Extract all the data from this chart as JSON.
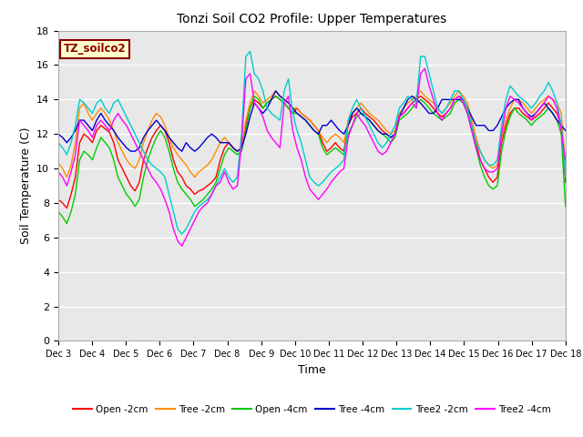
{
  "title": "Tonzi Soil CO2 Profile: Upper Temperatures",
  "xlabel": "Time",
  "ylabel": "Soil Temperature (C)",
  "ylim": [
    0,
    18
  ],
  "yticks": [
    0,
    2,
    4,
    6,
    8,
    10,
    12,
    14,
    16,
    18
  ],
  "annotation": "TZ_soilco2",
  "annotation_color": "#8B0000",
  "annotation_bg": "#FFFFCC",
  "annotation_border": "#8B0000",
  "fig_bg": "#FFFFFF",
  "plot_bg": "#E8E8E8",
  "grid_color": "#FFFFFF",
  "series_colors": {
    "Open -2cm": "#FF0000",
    "Tree -2cm": "#FF8C00",
    "Open -4cm": "#00CC00",
    "Tree -4cm": "#0000CC",
    "Tree2 -2cm": "#00CCCC",
    "Tree2 -4cm": "#FF00FF"
  },
  "n_points": 120,
  "x_tick_labels": [
    "Dec 3",
    "Dec 4",
    "Dec 5",
    "Dec 6",
    "Dec 7",
    "Dec 8",
    "Dec 9",
    "Dec 10",
    "Dec 11",
    "Dec 12",
    "Dec 13",
    "Dec 14",
    "Dec 15",
    "Dec 16",
    "Dec 17",
    "Dec 18"
  ],
  "open_2cm": [
    8.2,
    8.0,
    7.7,
    8.5,
    9.5,
    11.5,
    12.0,
    11.8,
    11.5,
    12.2,
    12.5,
    12.3,
    12.1,
    11.5,
    10.5,
    10.0,
    9.5,
    9.0,
    8.7,
    9.2,
    10.5,
    11.2,
    11.8,
    12.2,
    12.5,
    12.2,
    11.5,
    10.5,
    9.8,
    9.5,
    9.0,
    8.8,
    8.5,
    8.7,
    8.8,
    9.0,
    9.2,
    9.5,
    10.5,
    11.2,
    11.5,
    11.2,
    11.0,
    11.2,
    12.5,
    13.5,
    14.0,
    13.8,
    13.5,
    13.8,
    14.0,
    14.2,
    14.0,
    13.8,
    13.5,
    13.2,
    13.5,
    13.2,
    13.0,
    12.8,
    12.5,
    12.2,
    11.5,
    11.0,
    11.2,
    11.5,
    11.2,
    11.0,
    12.5,
    13.0,
    13.2,
    13.5,
    13.2,
    13.0,
    12.8,
    12.5,
    12.2,
    12.0,
    11.8,
    12.0,
    13.0,
    13.2,
    13.5,
    13.8,
    14.0,
    14.2,
    14.0,
    13.8,
    13.5,
    13.2,
    13.0,
    13.2,
    13.5,
    14.0,
    14.2,
    14.0,
    13.5,
    12.5,
    11.5,
    10.5,
    10.0,
    9.5,
    9.2,
    9.5,
    11.5,
    12.5,
    13.2,
    13.5,
    13.5,
    13.2,
    13.0,
    12.8,
    13.0,
    13.2,
    13.5,
    13.8,
    13.5,
    13.2,
    12.5,
    9.2
  ],
  "tree_2cm": [
    10.3,
    10.0,
    9.5,
    10.2,
    11.5,
    13.5,
    13.8,
    13.2,
    12.8,
    13.2,
    13.5,
    13.2,
    12.8,
    12.2,
    11.5,
    11.0,
    10.5,
    10.2,
    10.0,
    10.5,
    11.5,
    12.2,
    12.8,
    13.2,
    13.0,
    12.5,
    11.8,
    11.2,
    10.8,
    10.5,
    10.2,
    9.8,
    9.5,
    9.8,
    10.0,
    10.2,
    10.5,
    11.0,
    11.5,
    11.8,
    11.5,
    11.2,
    11.0,
    11.2,
    12.8,
    13.8,
    14.5,
    14.2,
    13.8,
    14.0,
    14.2,
    14.5,
    14.2,
    14.0,
    13.8,
    13.5,
    13.5,
    13.2,
    13.0,
    12.8,
    12.5,
    12.2,
    11.8,
    11.5,
    11.8,
    12.0,
    11.8,
    11.5,
    12.8,
    13.2,
    13.5,
    13.8,
    13.5,
    13.2,
    13.0,
    12.8,
    12.5,
    12.2,
    12.0,
    12.2,
    13.2,
    13.5,
    13.8,
    14.0,
    14.2,
    14.5,
    14.2,
    14.0,
    13.8,
    13.5,
    13.2,
    13.5,
    13.8,
    14.2,
    14.5,
    14.2,
    13.8,
    12.8,
    11.8,
    11.0,
    10.5,
    10.2,
    10.0,
    10.2,
    11.8,
    12.8,
    13.5,
    14.0,
    14.0,
    13.8,
    13.5,
    13.2,
    13.5,
    13.8,
    14.0,
    14.2,
    14.0,
    13.8,
    13.2,
    10.0
  ],
  "open_4cm": [
    7.5,
    7.2,
    6.8,
    7.5,
    8.5,
    10.5,
    11.0,
    10.8,
    10.5,
    11.2,
    11.8,
    11.5,
    11.2,
    10.5,
    9.5,
    9.0,
    8.5,
    8.2,
    7.8,
    8.2,
    9.5,
    10.5,
    11.2,
    11.8,
    12.2,
    11.8,
    11.0,
    10.0,
    9.2,
    8.8,
    8.5,
    8.2,
    7.8,
    8.0,
    8.2,
    8.5,
    8.8,
    9.2,
    10.0,
    10.8,
    11.2,
    11.0,
    10.8,
    11.0,
    12.2,
    13.5,
    14.2,
    14.0,
    13.5,
    13.8,
    14.0,
    14.2,
    14.0,
    13.8,
    13.5,
    13.2,
    13.2,
    13.0,
    12.8,
    12.5,
    12.2,
    12.0,
    11.2,
    10.8,
    11.0,
    11.2,
    11.0,
    10.8,
    12.0,
    12.5,
    13.0,
    13.2,
    13.0,
    12.8,
    12.5,
    12.2,
    12.0,
    11.8,
    11.5,
    11.8,
    12.8,
    13.0,
    13.2,
    13.5,
    13.8,
    14.0,
    13.8,
    13.5,
    13.2,
    13.0,
    12.8,
    13.0,
    13.2,
    13.8,
    14.0,
    13.8,
    13.2,
    12.2,
    11.2,
    10.2,
    9.5,
    9.0,
    8.8,
    9.0,
    11.0,
    12.2,
    13.0,
    13.5,
    13.2,
    13.0,
    12.8,
    12.5,
    12.8,
    13.0,
    13.2,
    13.5,
    13.2,
    12.8,
    12.0,
    7.8
  ],
  "tree_4cm": [
    12.0,
    11.8,
    11.5,
    11.8,
    12.2,
    12.8,
    12.8,
    12.5,
    12.2,
    12.8,
    13.2,
    12.8,
    12.5,
    12.2,
    11.8,
    11.5,
    11.2,
    11.0,
    11.0,
    11.2,
    11.8,
    12.2,
    12.5,
    12.8,
    12.5,
    12.2,
    11.8,
    11.5,
    11.2,
    11.0,
    11.5,
    11.2,
    11.0,
    11.2,
    11.5,
    11.8,
    12.0,
    11.8,
    11.5,
    11.5,
    11.5,
    11.2,
    11.0,
    11.2,
    12.0,
    13.0,
    13.8,
    13.5,
    13.2,
    13.5,
    14.0,
    14.5,
    14.2,
    14.0,
    13.8,
    13.5,
    13.2,
    13.0,
    12.8,
    12.5,
    12.2,
    12.0,
    12.5,
    12.5,
    12.8,
    12.5,
    12.2,
    12.0,
    12.5,
    13.2,
    13.5,
    13.2,
    13.0,
    12.8,
    12.5,
    12.2,
    12.0,
    12.0,
    11.8,
    12.0,
    13.0,
    13.5,
    14.0,
    14.2,
    14.0,
    13.8,
    13.5,
    13.2,
    13.2,
    13.5,
    14.0,
    14.0,
    14.0,
    14.0,
    14.0,
    14.0,
    13.5,
    13.0,
    12.5,
    12.5,
    12.5,
    12.2,
    12.2,
    12.5,
    13.0,
    13.5,
    13.8,
    14.0,
    14.0,
    13.5,
    13.2,
    13.0,
    13.2,
    13.5,
    13.8,
    13.5,
    13.2,
    12.8,
    12.5,
    12.2
  ],
  "tree2_2cm": [
    11.5,
    11.2,
    10.8,
    11.5,
    12.5,
    14.0,
    13.8,
    13.5,
    13.2,
    13.8,
    14.0,
    13.5,
    13.2,
    13.8,
    14.0,
    13.5,
    13.0,
    12.5,
    12.0,
    11.5,
    11.0,
    10.5,
    10.2,
    10.0,
    9.8,
    9.5,
    8.5,
    7.5,
    6.5,
    6.2,
    6.5,
    7.0,
    7.5,
    7.8,
    8.0,
    8.2,
    8.5,
    9.0,
    9.5,
    10.0,
    9.5,
    9.2,
    9.5,
    12.0,
    16.5,
    16.8,
    15.5,
    15.2,
    14.5,
    13.5,
    13.2,
    13.0,
    12.8,
    14.5,
    15.2,
    13.2,
    12.2,
    11.5,
    10.5,
    9.5,
    9.2,
    9.0,
    9.2,
    9.5,
    9.8,
    10.0,
    10.2,
    10.5,
    12.8,
    13.5,
    14.0,
    13.5,
    13.0,
    12.5,
    12.0,
    11.5,
    11.2,
    11.5,
    12.0,
    12.5,
    13.5,
    13.8,
    14.2,
    14.0,
    13.8,
    16.5,
    16.5,
    15.5,
    14.5,
    13.5,
    13.2,
    13.5,
    14.0,
    14.5,
    14.5,
    14.0,
    13.5,
    12.5,
    11.5,
    11.0,
    10.5,
    10.2,
    10.2,
    10.5,
    12.5,
    14.0,
    14.8,
    14.5,
    14.2,
    14.0,
    13.8,
    13.5,
    13.8,
    14.2,
    14.5,
    15.0,
    14.5,
    13.8,
    12.5,
    9.5
  ],
  "tree2_4cm": [
    9.8,
    9.5,
    9.0,
    9.8,
    10.8,
    12.8,
    12.5,
    12.2,
    11.8,
    12.5,
    12.8,
    12.5,
    12.2,
    12.8,
    13.2,
    12.8,
    12.5,
    12.0,
    11.5,
    11.0,
    10.5,
    10.0,
    9.5,
    9.2,
    8.8,
    8.2,
    7.5,
    6.5,
    5.8,
    5.5,
    6.0,
    6.5,
    7.0,
    7.5,
    7.8,
    8.0,
    8.5,
    9.0,
    9.2,
    9.8,
    9.2,
    8.8,
    9.0,
    11.5,
    15.2,
    15.5,
    13.8,
    13.5,
    13.0,
    12.2,
    11.8,
    11.5,
    11.2,
    13.8,
    14.2,
    12.2,
    11.2,
    10.5,
    9.5,
    8.8,
    8.5,
    8.2,
    8.5,
    8.8,
    9.2,
    9.5,
    9.8,
    10.0,
    11.8,
    12.5,
    13.2,
    12.8,
    12.5,
    12.0,
    11.5,
    11.0,
    10.8,
    11.0,
    11.5,
    12.0,
    13.0,
    13.2,
    13.5,
    13.8,
    13.5,
    15.5,
    15.8,
    14.8,
    14.0,
    13.2,
    12.8,
    13.2,
    13.5,
    14.0,
    14.2,
    13.8,
    13.2,
    12.2,
    11.2,
    10.5,
    10.0,
    9.8,
    9.8,
    10.0,
    12.0,
    13.5,
    14.2,
    14.0,
    13.8,
    13.5,
    13.2,
    12.8,
    13.2,
    13.5,
    13.8,
    14.2,
    14.0,
    13.5,
    12.2,
    10.5
  ]
}
